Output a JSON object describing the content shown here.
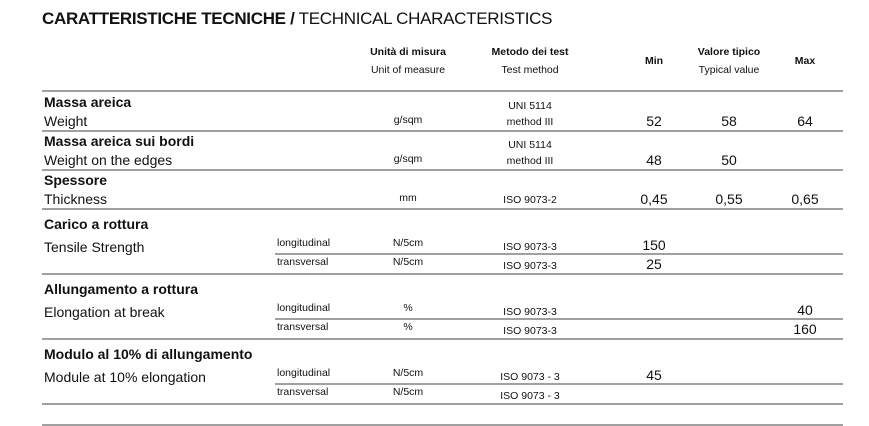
{
  "title": {
    "bold": "CARATTERISTICHE TECNICHE /",
    "regular": " TECHNICAL CHARACTERISTICS"
  },
  "headers": {
    "unit_it": "Unità di misura",
    "unit_en": "Unit of measure",
    "method_it": "Metodo dei test",
    "method_en": "Test method",
    "min": "Min",
    "typical_it": "Valore tipico",
    "typical_en": "Typical value",
    "max": "Max"
  },
  "rows": [
    {
      "name_it": "Massa areica",
      "name_en": "Weight",
      "unit": "g/sqm",
      "method1": "UNI 5114",
      "method2": "method III",
      "min": "52",
      "typical": "58",
      "max": "64"
    },
    {
      "name_it": "Massa areica sui bordi",
      "name_en": "Weight on the edges",
      "unit": "g/sqm",
      "method1": "UNI 5114",
      "method2": "method III",
      "min": "48",
      "typical": "50",
      "max": ""
    },
    {
      "name_it": "Spessore",
      "name_en": "Thickness",
      "unit": "mm",
      "method1": "",
      "method2": "ISO 9073-2",
      "min": "0,45",
      "typical": "0,55",
      "max": "0,65"
    }
  ],
  "groups": [
    {
      "name_it": "Carico a rottura",
      "name_en": "Tensile Strength",
      "sub": [
        {
          "dir": "longitudinal",
          "unit": "N/5cm",
          "method": "ISO 9073-3",
          "min": "150",
          "typical": "",
          "max": ""
        },
        {
          "dir": "transversal",
          "unit": "N/5cm",
          "method": "ISO 9073-3",
          "min": "25",
          "typical": "",
          "max": ""
        }
      ]
    },
    {
      "name_it": "Allungamento a rottura",
      "name_en": "Elongation at break",
      "sub": [
        {
          "dir": "longitudinal",
          "unit": "%",
          "method": "ISO 9073-3",
          "min": "",
          "typical": "",
          "max": "40"
        },
        {
          "dir": "transversal",
          "unit": "%",
          "method": "ISO 9073-3",
          "min": "",
          "typical": "",
          "max": "160"
        }
      ]
    },
    {
      "name_it": "Modulo al 10% di allungamento",
      "name_en": "Module at 10% elongation",
      "sub": [
        {
          "dir": "longitudinal",
          "unit": "N/5cm",
          "method": "ISO 9073 - 3",
          "min": "45",
          "typical": "",
          "max": ""
        },
        {
          "dir": "transversal",
          "unit": "N/5cm",
          "method": "ISO 9073 - 3",
          "min": "",
          "typical": "",
          "max": ""
        }
      ]
    }
  ]
}
